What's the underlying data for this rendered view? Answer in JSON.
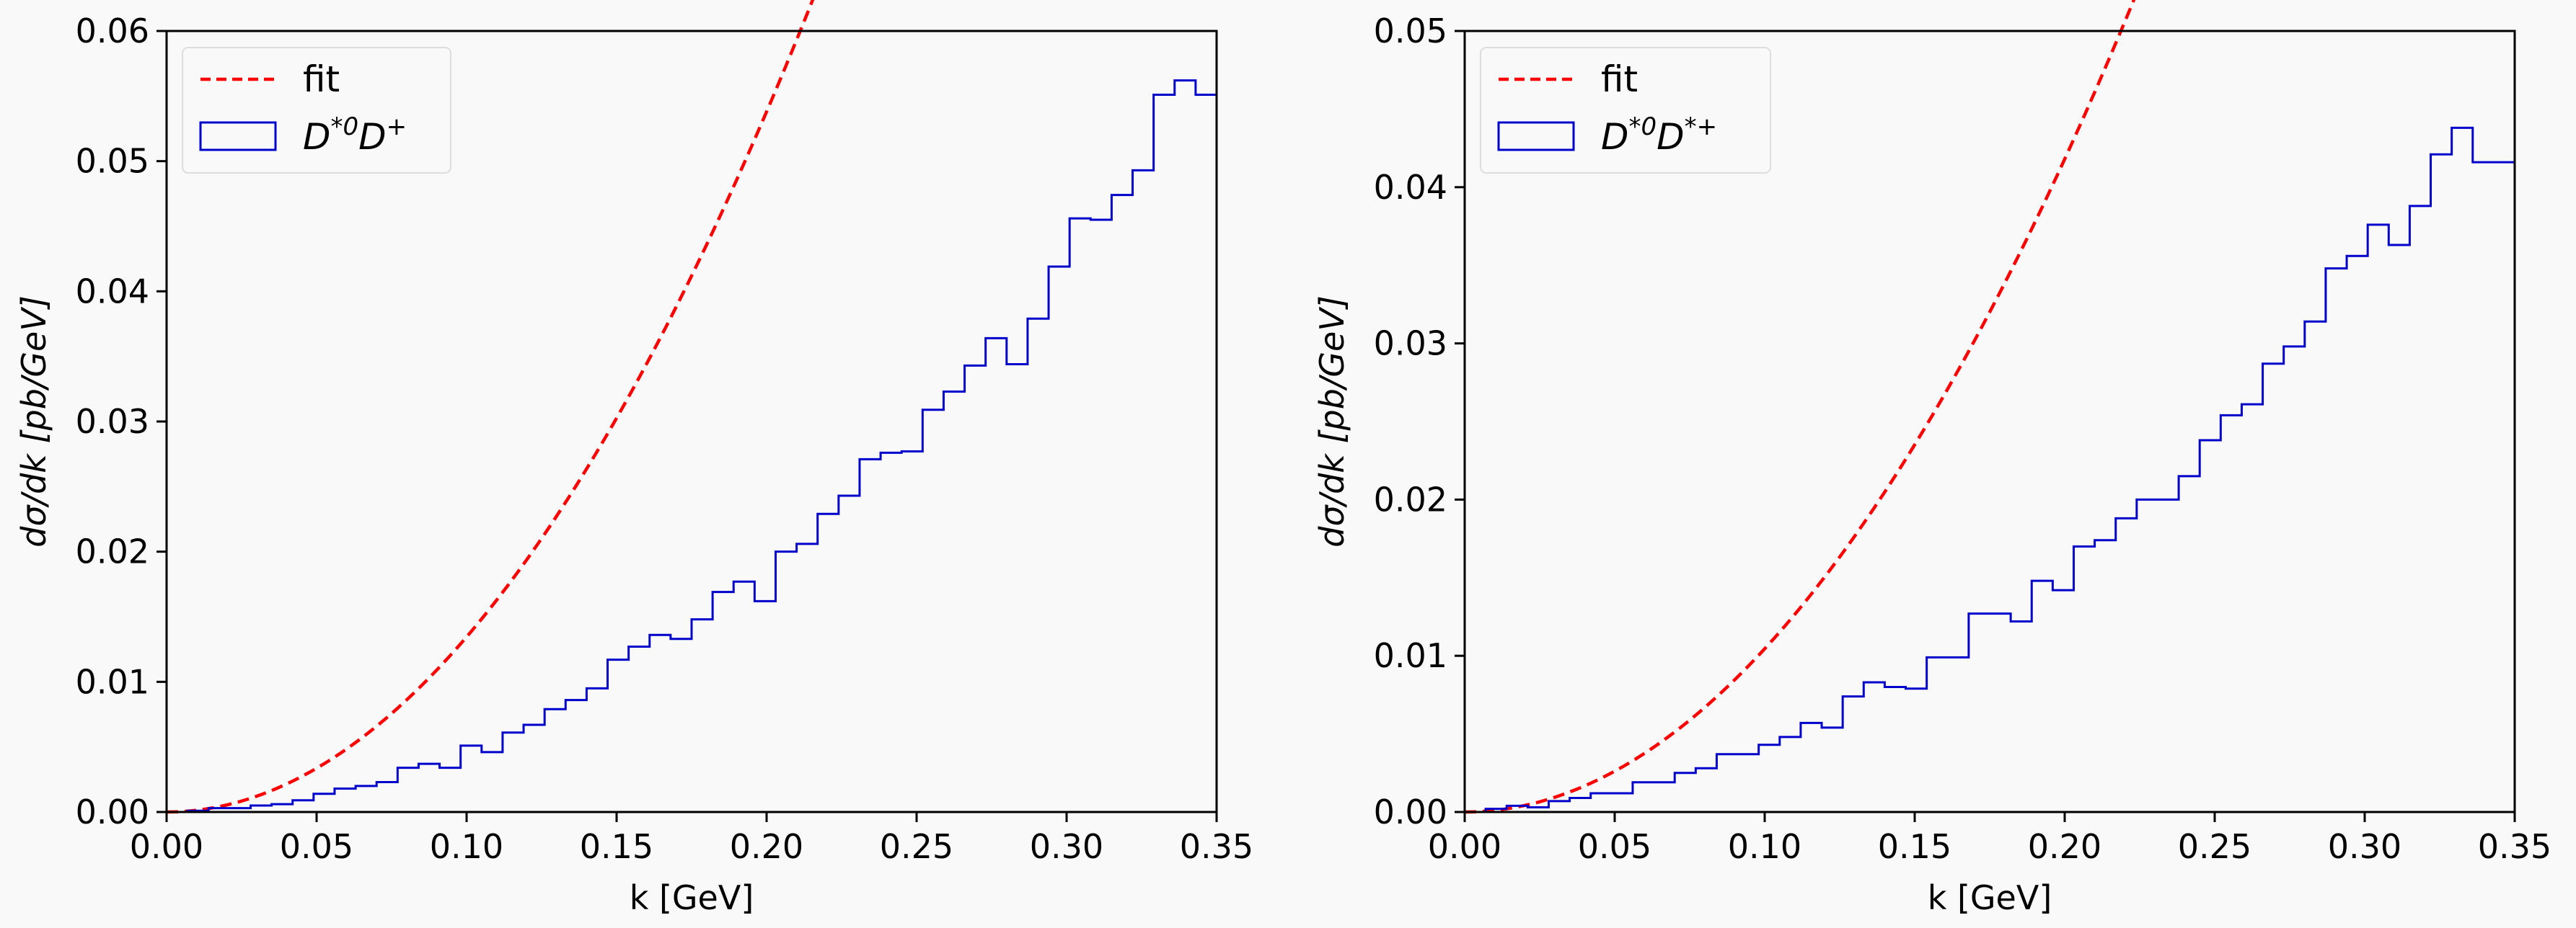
{
  "chart_data": [
    {
      "type": "line",
      "xlabel": "k [GeV]",
      "ylabel": "dσ/dk [pb/GeV]",
      "xlim": [
        0,
        0.35
      ],
      "ylim": [
        0,
        0.06
      ],
      "xticks": [
        "0.00",
        "0.05",
        "0.10",
        "0.15",
        "0.20",
        "0.25",
        "0.30",
        "0.35"
      ],
      "yticks": [
        "0.00",
        "0.01",
        "0.02",
        "0.03",
        "0.04",
        "0.05",
        "0.06"
      ],
      "legend_position": "top-left",
      "fit_coefficient": 1.345,
      "series": [
        {
          "name": "fit",
          "style": "dashed",
          "color": "#ff0000"
        },
        {
          "name": "D*0D+",
          "name_base": "D",
          "name_sup1": "*0",
          "name_base2": "D",
          "name_sup2": "+",
          "style": "step",
          "color": "#0000cc",
          "bin_edges": [
            0.0,
            0.007,
            0.014,
            0.021,
            0.028,
            0.035,
            0.042,
            0.049,
            0.056,
            0.063,
            0.07,
            0.077,
            0.084,
            0.091,
            0.098,
            0.105,
            0.112,
            0.119,
            0.126,
            0.133,
            0.14,
            0.147,
            0.154,
            0.161,
            0.168,
            0.175,
            0.182,
            0.189,
            0.196,
            0.203,
            0.21,
            0.217,
            0.224,
            0.231,
            0.238,
            0.245,
            0.252,
            0.259,
            0.266,
            0.273,
            0.28,
            0.287,
            0.294,
            0.301,
            0.308,
            0.315,
            0.322,
            0.329,
            0.336,
            0.343,
            0.35
          ],
          "values": [
            0.0,
            0.0001,
            0.0003,
            0.0003,
            0.0005,
            0.0006,
            0.0009,
            0.0014,
            0.0018,
            0.002,
            0.0023,
            0.0034,
            0.0037,
            0.0034,
            0.0051,
            0.0046,
            0.0061,
            0.0067,
            0.0079,
            0.0086,
            0.0095,
            0.0117,
            0.0127,
            0.0136,
            0.0133,
            0.0148,
            0.0169,
            0.0177,
            0.0162,
            0.02,
            0.0206,
            0.0229,
            0.0243,
            0.0271,
            0.0276,
            0.0277,
            0.0309,
            0.0323,
            0.0343,
            0.0364,
            0.0344,
            0.0379,
            0.0419,
            0.0456,
            0.0455,
            0.0474,
            0.0493,
            0.0551,
            0.0562,
            0.0551
          ]
        }
      ]
    },
    {
      "type": "line",
      "xlabel": "k [GeV]",
      "ylabel": "dσ/dk [pb/GeV]",
      "xlim": [
        0,
        0.35
      ],
      "ylim": [
        0,
        0.05
      ],
      "xticks": [
        "0.00",
        "0.05",
        "0.10",
        "0.15",
        "0.20",
        "0.25",
        "0.30",
        "0.35"
      ],
      "yticks": [
        "0.00",
        "0.01",
        "0.02",
        "0.03",
        "0.04",
        "0.05"
      ],
      "legend_position": "top-left",
      "fit_coefficient": 1.045,
      "series": [
        {
          "name": "fit",
          "style": "dashed",
          "color": "#ff0000"
        },
        {
          "name": "D*0D*+",
          "name_base": "D",
          "name_sup1": "*0",
          "name_base2": "D",
          "name_sup2": "*+",
          "style": "step",
          "color": "#0000cc",
          "bin_edges": [
            0.0,
            0.007,
            0.014,
            0.021,
            0.028,
            0.035,
            0.042,
            0.049,
            0.056,
            0.063,
            0.07,
            0.077,
            0.084,
            0.091,
            0.098,
            0.105,
            0.112,
            0.119,
            0.126,
            0.133,
            0.14,
            0.147,
            0.154,
            0.161,
            0.168,
            0.175,
            0.182,
            0.189,
            0.196,
            0.203,
            0.21,
            0.217,
            0.224,
            0.231,
            0.238,
            0.245,
            0.252,
            0.259,
            0.266,
            0.273,
            0.28,
            0.287,
            0.294,
            0.301,
            0.308,
            0.315,
            0.322,
            0.329,
            0.336,
            0.343,
            0.35
          ],
          "values": [
            0.0,
            0.0002,
            0.0004,
            0.0003,
            0.0007,
            0.0009,
            0.0012,
            0.0012,
            0.0019,
            0.0019,
            0.0025,
            0.0028,
            0.0037,
            0.0037,
            0.0043,
            0.0048,
            0.0057,
            0.0054,
            0.0074,
            0.0083,
            0.008,
            0.0079,
            0.0099,
            0.0099,
            0.0127,
            0.0127,
            0.0122,
            0.0148,
            0.0142,
            0.017,
            0.0174,
            0.0188,
            0.02,
            0.02,
            0.0215,
            0.0238,
            0.0254,
            0.0261,
            0.0287,
            0.0298,
            0.0314,
            0.0348,
            0.0356,
            0.0376,
            0.0363,
            0.0388,
            0.0421,
            0.0438,
            0.0416,
            0.0416
          ]
        }
      ]
    }
  ]
}
